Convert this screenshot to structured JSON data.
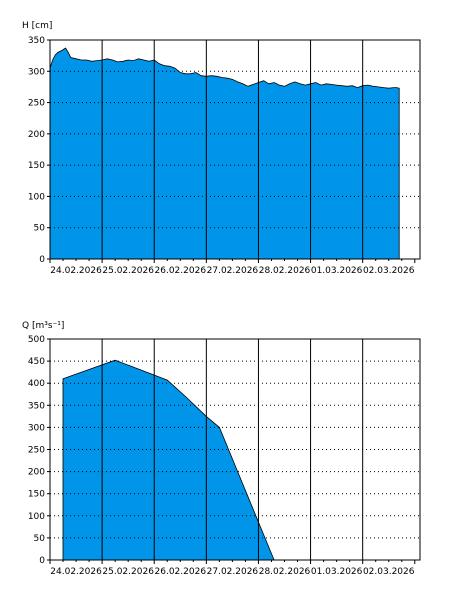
{
  "chart_data": [
    {
      "type": "area",
      "ylabel": "H [cm]",
      "ylim": [
        0,
        350
      ],
      "yticks": [
        0,
        50,
        100,
        150,
        200,
        250,
        300,
        350
      ],
      "xlim": [
        0,
        7.1
      ],
      "vgrid_at": [
        1,
        2,
        3,
        4,
        5,
        6
      ],
      "date_ticks": [
        {
          "label": "24.02.2026",
          "x": 0.5
        },
        {
          "label": "25.02.2026",
          "x": 1.5
        },
        {
          "label": "26.02.2026",
          "x": 2.5
        },
        {
          "label": "27.02.2026",
          "x": 3.5
        },
        {
          "label": "28.02.2026",
          "x": 4.5
        },
        {
          "label": "01.03.2026",
          "x": 5.5
        },
        {
          "label": "02.03.2026",
          "x": 6.5
        }
      ],
      "grid": "dotted-horizontal, solid-vertical",
      "fill_color": "#0095E9",
      "series": [
        {
          "x": [
            0.0,
            0.05,
            0.1,
            0.15,
            0.22,
            0.3,
            0.35,
            0.4,
            0.5,
            0.6,
            0.7,
            0.8,
            0.9,
            1.0,
            1.1,
            1.2,
            1.3,
            1.4,
            1.5,
            1.6,
            1.7,
            1.8,
            1.9,
            2.0,
            2.1,
            2.2,
            2.3,
            2.4,
            2.5,
            2.6,
            2.7,
            2.8,
            2.9,
            3.0,
            3.1,
            3.2,
            3.3,
            3.4,
            3.5,
            3.6,
            3.7,
            3.8,
            3.9,
            4.0,
            4.1,
            4.2,
            4.3,
            4.4,
            4.5,
            4.6,
            4.7,
            4.8,
            4.9,
            5.0,
            5.1,
            5.2,
            5.3,
            5.4,
            5.5,
            5.6,
            5.7,
            5.8,
            5.9,
            6.0,
            6.1,
            6.2,
            6.3,
            6.4,
            6.5,
            6.6,
            6.65,
            6.7
          ],
          "y": [
            305,
            318,
            326,
            330,
            333,
            337,
            330,
            322,
            320,
            318,
            318,
            316,
            317,
            318,
            320,
            318,
            315,
            316,
            318,
            317,
            320,
            318,
            316,
            318,
            312,
            309,
            308,
            305,
            298,
            296,
            296,
            298,
            293,
            292,
            293,
            292,
            290,
            289,
            287,
            283,
            280,
            276,
            279,
            282,
            285,
            280,
            282,
            278,
            276,
            280,
            283,
            280,
            278,
            280,
            282,
            278,
            280,
            279,
            278,
            277,
            276,
            277,
            274,
            277,
            278,
            276,
            275,
            274,
            273,
            274,
            274,
            273
          ]
        }
      ]
    },
    {
      "type": "area",
      "ylabel": "Q [m³s⁻¹]",
      "ylim": [
        0,
        500
      ],
      "yticks": [
        0,
        50,
        100,
        150,
        200,
        250,
        300,
        350,
        400,
        450,
        500
      ],
      "xlim": [
        0,
        7.1
      ],
      "vgrid_at": [
        1,
        2,
        3,
        4,
        5,
        6
      ],
      "date_ticks": [
        {
          "label": "24.02.2026",
          "x": 0.5
        },
        {
          "label": "25.02.2026",
          "x": 1.5
        },
        {
          "label": "26.02.2026",
          "x": 2.5
        },
        {
          "label": "27.02.2026",
          "x": 3.5
        },
        {
          "label": "28.02.2026",
          "x": 4.5
        },
        {
          "label": "01.03.2026",
          "x": 5.5
        },
        {
          "label": "02.03.2026",
          "x": 6.5
        }
      ],
      "grid": "dotted-horizontal, solid-vertical",
      "fill_color": "#0095E9",
      "series": [
        {
          "x": [
            0.25,
            1.25,
            2.25,
            2.6,
            3.0,
            3.25,
            4.3,
            4.7,
            5.0,
            5.25
          ],
          "y": [
            410,
            452,
            407,
            370,
            325,
            300,
            0,
            0,
            0,
            0
          ]
        }
      ]
    }
  ]
}
